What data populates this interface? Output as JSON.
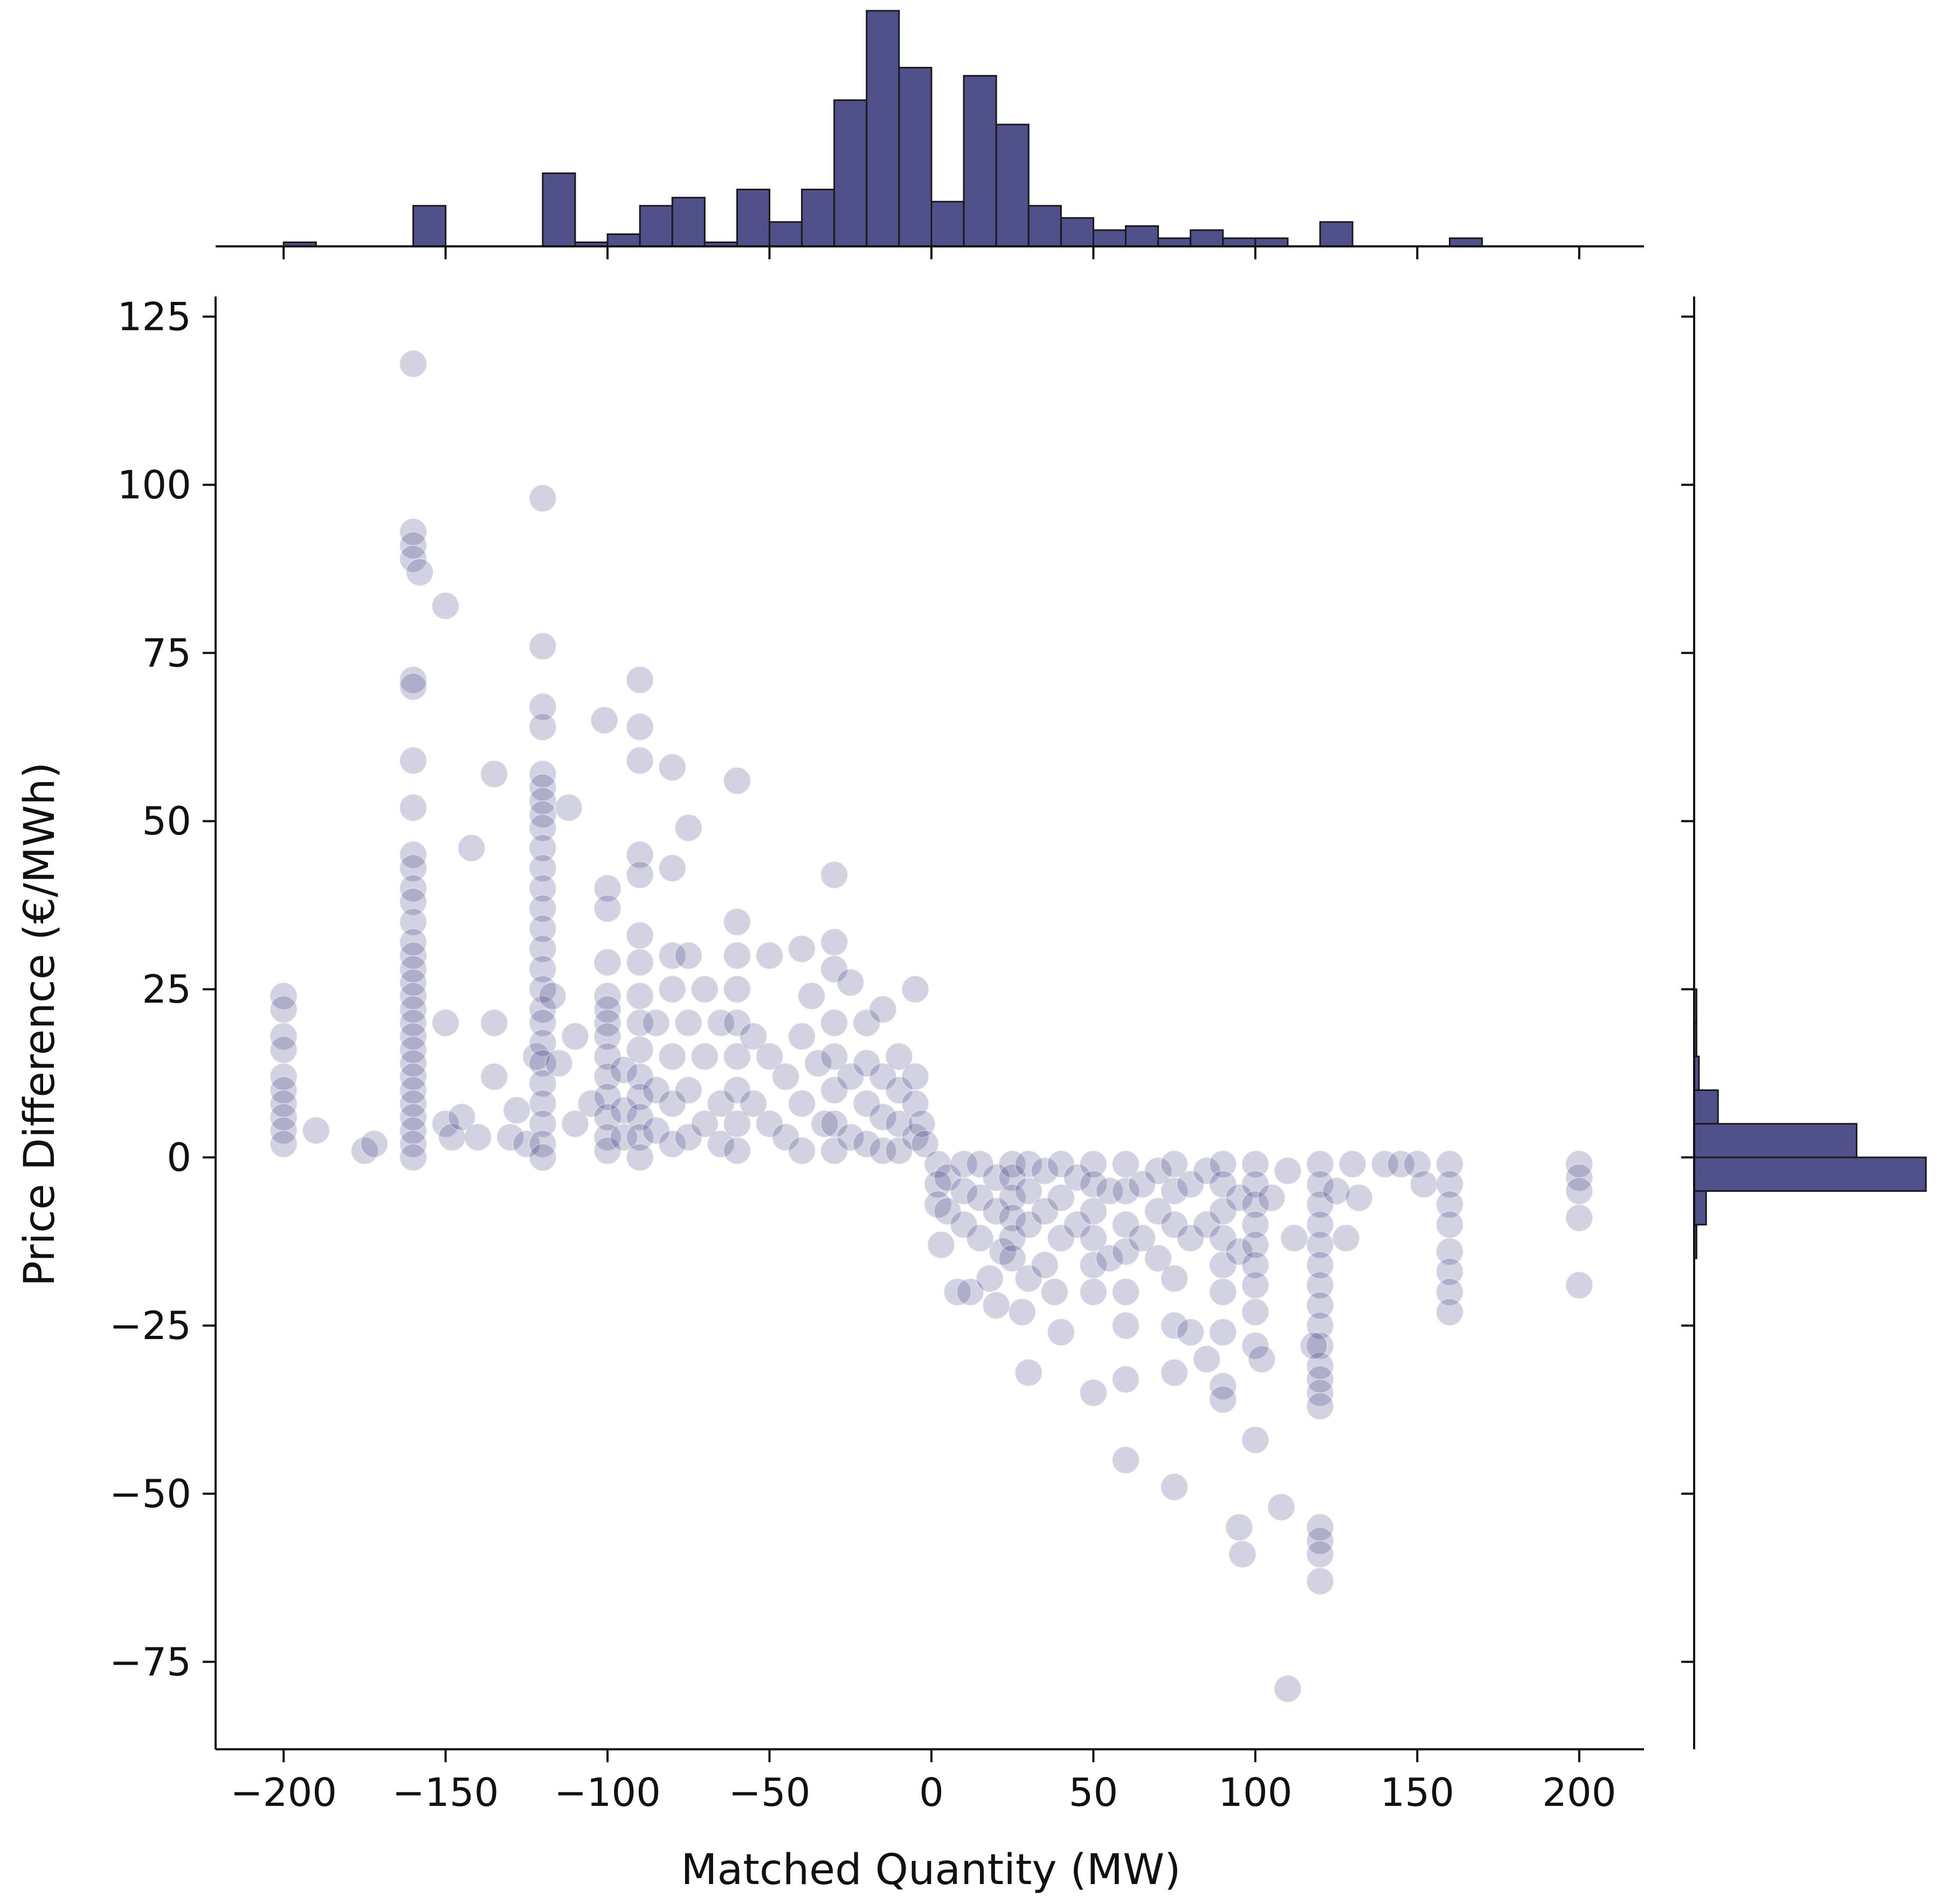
{
  "chart_data": {
    "type": "scatter",
    "subtype": "jointplot with marginal histograms",
    "xlabel": "Matched Quantity (MW)",
    "ylabel": "Price Difference (€/MWh)",
    "xlim": [
      -221,
      220
    ],
    "ylim": [
      -88,
      128
    ],
    "xticks": [
      -200,
      -150,
      -100,
      -50,
      0,
      50,
      100,
      150,
      200
    ],
    "xtick_labels": [
      "−200",
      "−150",
      "−100",
      "−50",
      "0",
      "50",
      "100",
      "150",
      "200"
    ],
    "yticks": [
      125,
      100,
      75,
      50,
      25,
      0,
      -25,
      -50,
      -75
    ],
    "ytick_labels": [
      "125",
      "100",
      "75",
      "50",
      "25",
      "0",
      "−25",
      "−50",
      "−75"
    ],
    "grid": false,
    "legend": "none",
    "colors": {
      "bar": "#50508a",
      "point": "#1c1c6e",
      "axis": "#111111"
    },
    "point_alpha": 0.2,
    "points": [
      [
        -200,
        24
      ],
      [
        -200,
        22
      ],
      [
        -200,
        18
      ],
      [
        -200,
        16
      ],
      [
        -200,
        12
      ],
      [
        -200,
        10
      ],
      [
        -200,
        8
      ],
      [
        -200,
        6
      ],
      [
        -200,
        4
      ],
      [
        -200,
        2
      ],
      [
        -190,
        4
      ],
      [
        -175,
        1
      ],
      [
        -172,
        2
      ],
      [
        -160,
        118
      ],
      [
        -160,
        93
      ],
      [
        -160,
        91
      ],
      [
        -160,
        89
      ],
      [
        -158,
        87
      ],
      [
        -150,
        82
      ],
      [
        -160,
        71
      ],
      [
        -160,
        70
      ],
      [
        -160,
        59
      ],
      [
        -160,
        52
      ],
      [
        -160,
        45
      ],
      [
        -160,
        43
      ],
      [
        -160,
        40
      ],
      [
        -160,
        38
      ],
      [
        -160,
        35
      ],
      [
        -160,
        32
      ],
      [
        -160,
        30
      ],
      [
        -160,
        28
      ],
      [
        -160,
        26
      ],
      [
        -160,
        24
      ],
      [
        -160,
        22
      ],
      [
        -160,
        20
      ],
      [
        -160,
        18
      ],
      [
        -160,
        16
      ],
      [
        -160,
        14
      ],
      [
        -160,
        12
      ],
      [
        -160,
        10
      ],
      [
        -160,
        8
      ],
      [
        -160,
        6
      ],
      [
        -160,
        4
      ],
      [
        -160,
        2
      ],
      [
        -160,
        0
      ],
      [
        -150,
        20
      ],
      [
        -150,
        5
      ],
      [
        -148,
        3
      ],
      [
        -145,
        6
      ],
      [
        -142,
        46
      ],
      [
        -140,
        3
      ],
      [
        -135,
        20
      ],
      [
        -135,
        12
      ],
      [
        -135,
        57
      ],
      [
        -130,
        3
      ],
      [
        -128,
        7
      ],
      [
        -125,
        2
      ],
      [
        -122,
        15
      ],
      [
        -120,
        98
      ],
      [
        -120,
        76
      ],
      [
        -120,
        67
      ],
      [
        -120,
        64
      ],
      [
        -120,
        57
      ],
      [
        -120,
        55
      ],
      [
        -120,
        53
      ],
      [
        -120,
        51
      ],
      [
        -120,
        49
      ],
      [
        -120,
        46
      ],
      [
        -120,
        43
      ],
      [
        -120,
        40
      ],
      [
        -120,
        37
      ],
      [
        -120,
        34
      ],
      [
        -120,
        31
      ],
      [
        -120,
        28
      ],
      [
        -120,
        25
      ],
      [
        -120,
        22
      ],
      [
        -120,
        20
      ],
      [
        -120,
        17
      ],
      [
        -120,
        14
      ],
      [
        -120,
        11
      ],
      [
        -120,
        8
      ],
      [
        -120,
        5
      ],
      [
        -120,
        2
      ],
      [
        -120,
        0
      ],
      [
        -117,
        24
      ],
      [
        -115,
        14
      ],
      [
        -112,
        52
      ],
      [
        -110,
        18
      ],
      [
        -110,
        5
      ],
      [
        -105,
        8
      ],
      [
        -101,
        65
      ],
      [
        -100,
        40
      ],
      [
        -100,
        37
      ],
      [
        -100,
        29
      ],
      [
        -100,
        24
      ],
      [
        -100,
        22
      ],
      [
        -100,
        20
      ],
      [
        -100,
        18
      ],
      [
        -100,
        15
      ],
      [
        -100,
        12
      ],
      [
        -100,
        9
      ],
      [
        -100,
        6
      ],
      [
        -100,
        3
      ],
      [
        -100,
        1
      ],
      [
        -95,
        13
      ],
      [
        -95,
        7
      ],
      [
        -95,
        3
      ],
      [
        -90,
        71
      ],
      [
        -90,
        64
      ],
      [
        -90,
        59
      ],
      [
        -90,
        45
      ],
      [
        -90,
        42
      ],
      [
        -90,
        33
      ],
      [
        -90,
        29
      ],
      [
        -90,
        24
      ],
      [
        -90,
        20
      ],
      [
        -90,
        16
      ],
      [
        -90,
        12
      ],
      [
        -90,
        9
      ],
      [
        -90,
        6
      ],
      [
        -90,
        3
      ],
      [
        -90,
        0
      ],
      [
        -85,
        20
      ],
      [
        -85,
        10
      ],
      [
        -85,
        4
      ],
      [
        -80,
        58
      ],
      [
        -80,
        43
      ],
      [
        -80,
        30
      ],
      [
        -80,
        25
      ],
      [
        -80,
        15
      ],
      [
        -80,
        8
      ],
      [
        -80,
        2
      ],
      [
        -75,
        49
      ],
      [
        -75,
        30
      ],
      [
        -75,
        20
      ],
      [
        -75,
        10
      ],
      [
        -75,
        3
      ],
      [
        -70,
        25
      ],
      [
        -70,
        15
      ],
      [
        -70,
        5
      ],
      [
        -65,
        20
      ],
      [
        -65,
        8
      ],
      [
        -65,
        2
      ],
      [
        -60,
        56
      ],
      [
        -60,
        35
      ],
      [
        -60,
        30
      ],
      [
        -60,
        25
      ],
      [
        -60,
        20
      ],
      [
        -60,
        15
      ],
      [
        -60,
        10
      ],
      [
        -60,
        5
      ],
      [
        -60,
        1
      ],
      [
        -55,
        18
      ],
      [
        -55,
        8
      ],
      [
        -50,
        30
      ],
      [
        -50,
        15
      ],
      [
        -50,
        5
      ],
      [
        -45,
        12
      ],
      [
        -45,
        3
      ],
      [
        -40,
        31
      ],
      [
        -40,
        18
      ],
      [
        -40,
        8
      ],
      [
        -40,
        1
      ],
      [
        -37,
        24
      ],
      [
        -35,
        14
      ],
      [
        -33,
        5
      ],
      [
        -30,
        42
      ],
      [
        -30,
        32
      ],
      [
        -30,
        28
      ],
      [
        -30,
        20
      ],
      [
        -30,
        15
      ],
      [
        -30,
        10
      ],
      [
        -30,
        5
      ],
      [
        -30,
        1
      ],
      [
        -25,
        26
      ],
      [
        -25,
        12
      ],
      [
        -25,
        3
      ],
      [
        -20,
        20
      ],
      [
        -20,
        14
      ],
      [
        -20,
        8
      ],
      [
        -20,
        2
      ],
      [
        -15,
        22
      ],
      [
        -15,
        12
      ],
      [
        -15,
        6
      ],
      [
        -15,
        1
      ],
      [
        -10,
        15
      ],
      [
        -10,
        10
      ],
      [
        -10,
        5
      ],
      [
        -10,
        1
      ],
      [
        -5,
        25
      ],
      [
        -5,
        12
      ],
      [
        -5,
        8
      ],
      [
        -5,
        3
      ],
      [
        -3,
        5
      ],
      [
        -2,
        2
      ],
      [
        2,
        -1
      ],
      [
        2,
        -4
      ],
      [
        2,
        -7
      ],
      [
        3,
        -13
      ],
      [
        5,
        -3
      ],
      [
        5,
        -8
      ],
      [
        8,
        -20
      ],
      [
        10,
        -1
      ],
      [
        10,
        -5
      ],
      [
        10,
        -10
      ],
      [
        12,
        -20
      ],
      [
        15,
        -1
      ],
      [
        15,
        -6
      ],
      [
        15,
        -12
      ],
      [
        18,
        -18
      ],
      [
        20,
        -3
      ],
      [
        20,
        -8
      ],
      [
        20,
        -22
      ],
      [
        22,
        -14
      ],
      [
        25,
        -1
      ],
      [
        25,
        -3
      ],
      [
        25,
        -6
      ],
      [
        25,
        -9
      ],
      [
        25,
        -12
      ],
      [
        25,
        -15
      ],
      [
        28,
        -23
      ],
      [
        30,
        -1
      ],
      [
        30,
        -5
      ],
      [
        30,
        -10
      ],
      [
        30,
        -18
      ],
      [
        30,
        -32
      ],
      [
        35,
        -2
      ],
      [
        35,
        -8
      ],
      [
        35,
        -16
      ],
      [
        38,
        -20
      ],
      [
        40,
        -1
      ],
      [
        40,
        -6
      ],
      [
        40,
        -12
      ],
      [
        40,
        -26
      ],
      [
        45,
        -3
      ],
      [
        45,
        -10
      ],
      [
        50,
        -1
      ],
      [
        50,
        -4
      ],
      [
        50,
        -8
      ],
      [
        50,
        -12
      ],
      [
        50,
        -16
      ],
      [
        50,
        -20
      ],
      [
        50,
        -35
      ],
      [
        55,
        -5
      ],
      [
        55,
        -15
      ],
      [
        60,
        -1
      ],
      [
        60,
        -5
      ],
      [
        60,
        -10
      ],
      [
        60,
        -14
      ],
      [
        60,
        -20
      ],
      [
        60,
        -25
      ],
      [
        60,
        -33
      ],
      [
        60,
        -45
      ],
      [
        65,
        -4
      ],
      [
        65,
        -12
      ],
      [
        70,
        -2
      ],
      [
        70,
        -8
      ],
      [
        70,
        -15
      ],
      [
        75,
        -1
      ],
      [
        75,
        -5
      ],
      [
        75,
        -10
      ],
      [
        75,
        -18
      ],
      [
        75,
        -25
      ],
      [
        75,
        -32
      ],
      [
        75,
        -49
      ],
      [
        80,
        -4
      ],
      [
        80,
        -12
      ],
      [
        80,
        -26
      ],
      [
        85,
        -2
      ],
      [
        85,
        -10
      ],
      [
        85,
        -30
      ],
      [
        90,
        -1
      ],
      [
        90,
        -4
      ],
      [
        90,
        -8
      ],
      [
        90,
        -12
      ],
      [
        90,
        -16
      ],
      [
        90,
        -20
      ],
      [
        90,
        -26
      ],
      [
        90,
        -34
      ],
      [
        90,
        -36
      ],
      [
        95,
        -6
      ],
      [
        95,
        -14
      ],
      [
        95,
        -55
      ],
      [
        96,
        -59
      ],
      [
        100,
        -1
      ],
      [
        100,
        -4
      ],
      [
        100,
        -7
      ],
      [
        100,
        -10
      ],
      [
        100,
        -13
      ],
      [
        100,
        -16
      ],
      [
        100,
        -19
      ],
      [
        100,
        -23
      ],
      [
        100,
        -28
      ],
      [
        100,
        -42
      ],
      [
        102,
        -30
      ],
      [
        105,
        -6
      ],
      [
        108,
        -52
      ],
      [
        110,
        -2
      ],
      [
        110,
        -79
      ],
      [
        112,
        -12
      ],
      [
        120,
        -1
      ],
      [
        120,
        -4
      ],
      [
        120,
        -7
      ],
      [
        120,
        -10
      ],
      [
        120,
        -13
      ],
      [
        120,
        -16
      ],
      [
        120,
        -19
      ],
      [
        120,
        -22
      ],
      [
        120,
        -25
      ],
      [
        120,
        -28
      ],
      [
        120,
        -31
      ],
      [
        120,
        -33
      ],
      [
        120,
        -35
      ],
      [
        120,
        -37
      ],
      [
        120,
        -55
      ],
      [
        120,
        -57
      ],
      [
        120,
        -59
      ],
      [
        120,
        -63
      ],
      [
        118,
        -28
      ],
      [
        125,
        -5
      ],
      [
        128,
        -12
      ],
      [
        130,
        -1
      ],
      [
        132,
        -6
      ],
      [
        140,
        -1
      ],
      [
        145,
        -1
      ],
      [
        150,
        -1
      ],
      [
        152,
        -4
      ],
      [
        160,
        -1
      ],
      [
        160,
        -4
      ],
      [
        160,
        -7
      ],
      [
        160,
        -10
      ],
      [
        160,
        -14
      ],
      [
        160,
        -17
      ],
      [
        160,
        -20
      ],
      [
        160,
        -23
      ],
      [
        200,
        -1
      ],
      [
        200,
        -3
      ],
      [
        200,
        -5
      ],
      [
        200,
        -9
      ],
      [
        200,
        -19
      ]
    ],
    "x_hist": {
      "bin_width": 10,
      "bins": [
        {
          "x0": -200,
          "count": 1
        },
        {
          "x0": -160,
          "count": 10
        },
        {
          "x0": -120,
          "count": 18
        },
        {
          "x0": -110,
          "count": 1
        },
        {
          "x0": -100,
          "count": 3
        },
        {
          "x0": -90,
          "count": 10
        },
        {
          "x0": -80,
          "count": 12
        },
        {
          "x0": -70,
          "count": 1
        },
        {
          "x0": -60,
          "count": 14
        },
        {
          "x0": -50,
          "count": 6
        },
        {
          "x0": -40,
          "count": 14
        },
        {
          "x0": -30,
          "count": 36
        },
        {
          "x0": -20,
          "count": 58
        },
        {
          "x0": -10,
          "count": 44
        },
        {
          "x0": 0,
          "count": 11
        },
        {
          "x0": 10,
          "count": 42
        },
        {
          "x0": 20,
          "count": 30
        },
        {
          "x0": 30,
          "count": 10
        },
        {
          "x0": 40,
          "count": 7
        },
        {
          "x0": 50,
          "count": 4
        },
        {
          "x0": 60,
          "count": 5
        },
        {
          "x0": 70,
          "count": 2
        },
        {
          "x0": 80,
          "count": 4
        },
        {
          "x0": 90,
          "count": 2
        },
        {
          "x0": 100,
          "count": 2
        },
        {
          "x0": 120,
          "count": 6
        },
        {
          "x0": 160,
          "count": 2
        }
      ]
    },
    "y_hist": {
      "bins": [
        {
          "y0": 20,
          "y1": 25,
          "count": 1
        },
        {
          "y0": 15,
          "y1": 20,
          "count": 1
        },
        {
          "y0": 10,
          "y1": 15,
          "count": 2
        },
        {
          "y0": 5,
          "y1": 10,
          "count": 10
        },
        {
          "y0": 0,
          "y1": 5,
          "count": 68
        },
        {
          "y0": -5,
          "y1": 0,
          "count": 97
        },
        {
          "y0": -10,
          "y1": -5,
          "count": 5
        },
        {
          "y0": -15,
          "y1": -10,
          "count": 1
        }
      ]
    }
  }
}
